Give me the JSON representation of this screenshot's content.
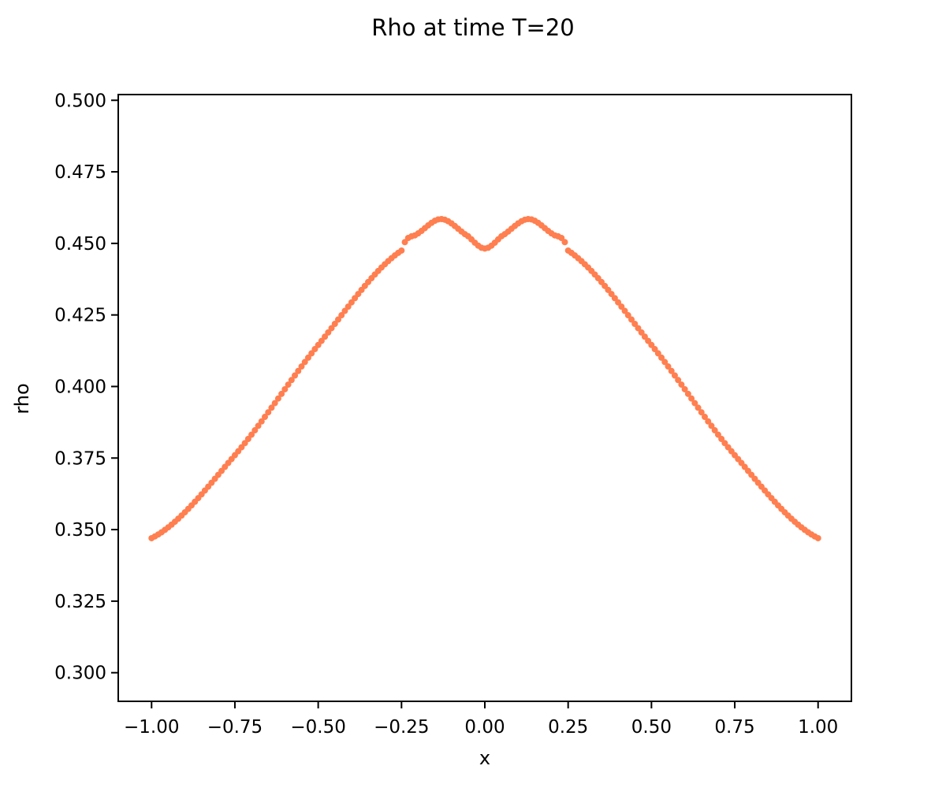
{
  "chart_data": {
    "type": "scatter",
    "title": "Rho at time T=20",
    "xlabel": "x",
    "ylabel": "rho",
    "xlim": [
      -1.1,
      1.1
    ],
    "ylim": [
      0.29,
      0.502
    ],
    "xticks": [
      -1.0,
      -0.75,
      -0.5,
      -0.25,
      0.0,
      0.25,
      0.5,
      0.75,
      1.0
    ],
    "xtick_labels": [
      "−1.00",
      "−0.75",
      "−0.50",
      "−0.25",
      "0.00",
      "0.25",
      "0.50",
      "0.75",
      "1.00"
    ],
    "yticks": [
      0.3,
      0.325,
      0.35,
      0.375,
      0.4,
      0.425,
      0.45,
      0.475,
      0.5
    ],
    "ytick_labels": [
      "0.300",
      "0.325",
      "0.350",
      "0.375",
      "0.400",
      "0.425",
      "0.450",
      "0.475",
      "0.500"
    ],
    "grid": false,
    "series": [
      {
        "color": "#ff7f50",
        "x_range": [
          -1.0,
          1.0
        ],
        "n_points": 201,
        "keypoints": [
          {
            "x": -1.0,
            "y": 0.347
          },
          {
            "x": -0.75,
            "y": 0.376
          },
          {
            "x": -0.5,
            "y": 0.4145
          },
          {
            "x": -0.25,
            "y": 0.4475
          },
          {
            "x": -0.2,
            "y": 0.4535
          },
          {
            "x": -0.13,
            "y": 0.4585
          },
          {
            "x": -0.05,
            "y": 0.4525
          },
          {
            "x": 0.0,
            "y": 0.4482
          },
          {
            "x": 0.05,
            "y": 0.4525
          },
          {
            "x": 0.13,
            "y": 0.4585
          },
          {
            "x": 0.2,
            "y": 0.4535
          },
          {
            "x": 0.25,
            "y": 0.4475
          },
          {
            "x": 0.5,
            "y": 0.4145
          },
          {
            "x": 0.75,
            "y": 0.376
          },
          {
            "x": 1.0,
            "y": 0.347
          }
        ]
      }
    ]
  }
}
